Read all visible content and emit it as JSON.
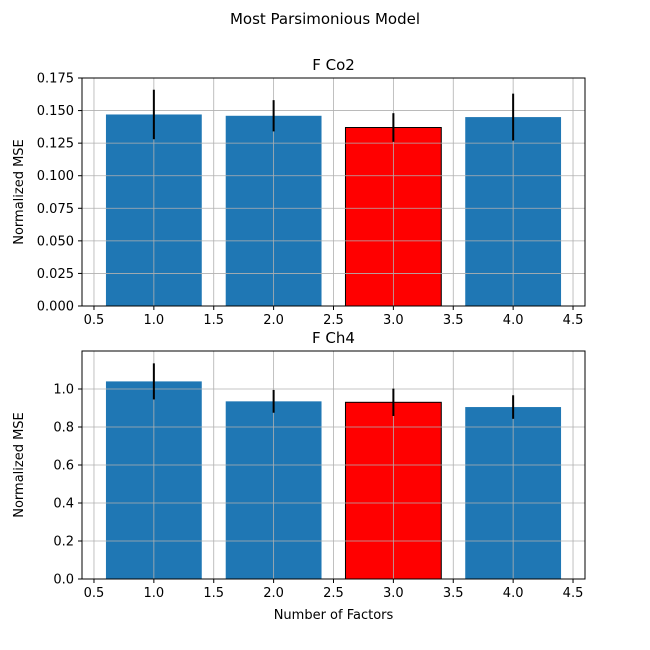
{
  "figure": {
    "suptitle": "Most Parsimonious Model"
  },
  "chart_data": [
    {
      "type": "bar",
      "title": "F Co2",
      "xlabel": "",
      "ylabel": "Normalized MSE",
      "x": [
        1,
        2,
        3,
        4
      ],
      "values": [
        0.147,
        0.146,
        0.137,
        0.145
      ],
      "errors": [
        0.019,
        0.012,
        0.011,
        0.018
      ],
      "bar_colors": [
        "#1f77b4",
        "#1f77b4",
        "#ff0000",
        "#1f77b4"
      ],
      "highlight_index": 2,
      "xlim": [
        0.4,
        4.6
      ],
      "ylim": [
        0,
        0.175
      ],
      "xticks": [
        0.5,
        1.0,
        1.5,
        2.0,
        2.5,
        3.0,
        3.5,
        4.0,
        4.5
      ],
      "xtick_labels": [
        "0.5",
        "1.0",
        "1.5",
        "2.0",
        "2.5",
        "3.0",
        "3.5",
        "4.0",
        "4.5"
      ],
      "yticks": [
        0,
        0.025,
        0.05,
        0.075,
        0.1,
        0.125,
        0.15,
        0.175
      ],
      "ytick_labels": [
        "0.000",
        "0.025",
        "0.050",
        "0.075",
        "0.100",
        "0.125",
        "0.150",
        "0.175"
      ],
      "grid": true
    },
    {
      "type": "bar",
      "title": "F Ch4",
      "xlabel": "Number of Factors",
      "ylabel": "Normalized MSE",
      "x": [
        1,
        2,
        3,
        4
      ],
      "values": [
        1.04,
        0.935,
        0.93,
        0.905
      ],
      "errors": [
        0.095,
        0.06,
        0.072,
        0.062
      ],
      "bar_colors": [
        "#1f77b4",
        "#1f77b4",
        "#ff0000",
        "#1f77b4"
      ],
      "highlight_index": 2,
      "xlim": [
        0.4,
        4.6
      ],
      "ylim": [
        0,
        1.2
      ],
      "xticks": [
        0.5,
        1.0,
        1.5,
        2.0,
        2.5,
        3.0,
        3.5,
        4.0,
        4.5
      ],
      "xtick_labels": [
        "0.5",
        "1.0",
        "1.5",
        "2.0",
        "2.5",
        "3.0",
        "3.5",
        "4.0",
        "4.5"
      ],
      "yticks": [
        0,
        0.2,
        0.4,
        0.6,
        0.8,
        1.0
      ],
      "ytick_labels": [
        "0.0",
        "0.2",
        "0.4",
        "0.6",
        "0.8",
        "1.0"
      ],
      "grid": true
    }
  ]
}
